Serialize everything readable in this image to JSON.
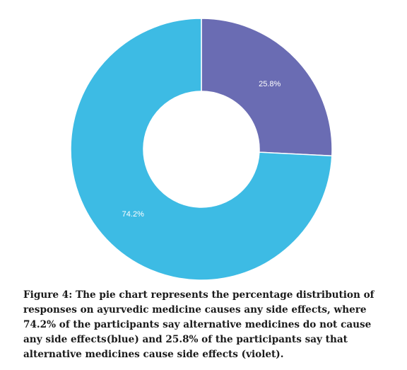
{
  "chart_data": {
    "type": "pie",
    "donut": true,
    "categories": [
      "Cause side effects",
      "Do not cause side effects"
    ],
    "values": [
      25.8,
      74.2
    ],
    "data_labels": [
      "25.8%",
      "74.2%"
    ],
    "colors": [
      "#6a6cb3",
      "#3dbbe4"
    ],
    "title": "",
    "legend": "none"
  },
  "caption": {
    "lines": [
      "Figure 4: The pie chart represents the percentage distribution of",
      "responses on ayurvedic medicine causes any side effects, where",
      "74.2% of the participants say alternative medicines do not cause",
      "any side effects(blue) and 25.8% of the participants say that",
      "alternative medicines cause side effects  (violet)."
    ]
  }
}
